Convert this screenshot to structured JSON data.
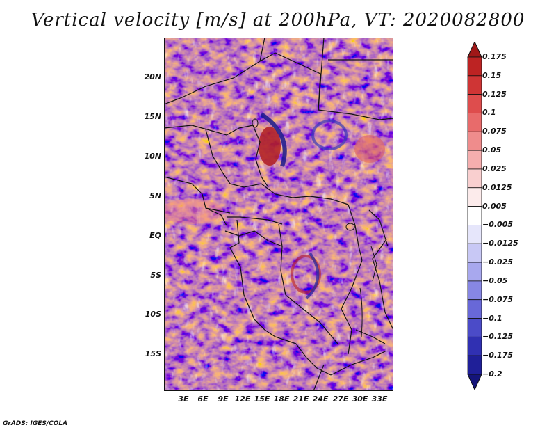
{
  "title": "Vertical velocity [m/s] at 200hPa, VT: 2020082800",
  "credit": "GrADS: IGES/COLA",
  "map": {
    "lat_labels": [
      "20N",
      "15N",
      "10N",
      "5N",
      "EQ",
      "5S",
      "10S",
      "15S"
    ],
    "lon_labels": [
      "3E",
      "6E",
      "9E",
      "12E",
      "15E",
      "18E",
      "21E",
      "24E",
      "27E",
      "30E",
      "33E"
    ],
    "field": "Vertical velocity",
    "units": "m/s",
    "level": "200hPa",
    "valid_time": "2020082800"
  },
  "colorbar": {
    "labels": [
      "0.175",
      "0.15",
      "0.125",
      "0.1",
      "0.075",
      "0.05",
      "0.025",
      "0.0125",
      "0.005",
      "−0.005",
      "−0.0125",
      "−0.025",
      "−0.05",
      "−0.075",
      "−0.1",
      "−0.125",
      "−0.175",
      "−0.2"
    ],
    "colors": [
      "#a01818",
      "#bd2323",
      "#cf3535",
      "#de4d4d",
      "#e86b6b",
      "#ef8c8c",
      "#f5aeae",
      "#f9cfcf",
      "#fcebeb",
      "#ffffff",
      "#e6e6fb",
      "#c8c8f5",
      "#a8a8ee",
      "#8787e4",
      "#6868d8",
      "#4b4bc8",
      "#3030b2",
      "#1f1f98",
      "#14147a"
    ]
  }
}
